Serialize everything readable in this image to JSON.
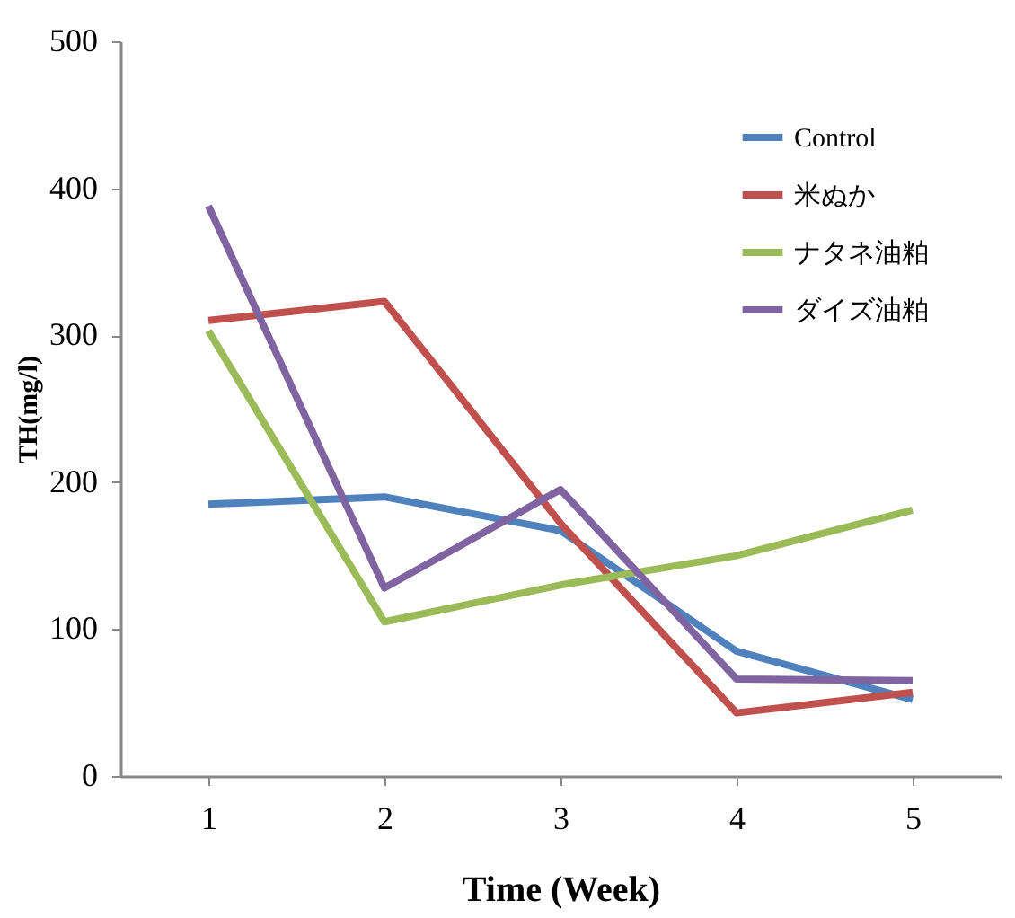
{
  "chart_data": {
    "type": "line",
    "xlabel": "Time (Week)",
    "ylabel": "TH(mg/l)",
    "categories": [
      "1",
      "2",
      "3",
      "4",
      "5"
    ],
    "ylim": [
      0,
      500
    ],
    "yticks": [
      0,
      100,
      200,
      300,
      400,
      500
    ],
    "grid": false,
    "legend": "top right",
    "marker": "none",
    "line_style": "solid",
    "series": [
      {
        "name": "Control",
        "color": "#4f81bd",
        "values": [
          185,
          190,
          167,
          85,
          52
        ]
      },
      {
        "name": "米ぬか",
        "color": "#c0504d",
        "values": [
          310,
          323,
          172,
          43,
          57
        ]
      },
      {
        "name": "ナタネ油粕",
        "color": "#9bbb59",
        "values": [
          303,
          105,
          130,
          150,
          181
        ]
      },
      {
        "name": "ダイズ油粕",
        "color": "#8064a2",
        "values": [
          388,
          128,
          195,
          66,
          65
        ]
      }
    ]
  }
}
